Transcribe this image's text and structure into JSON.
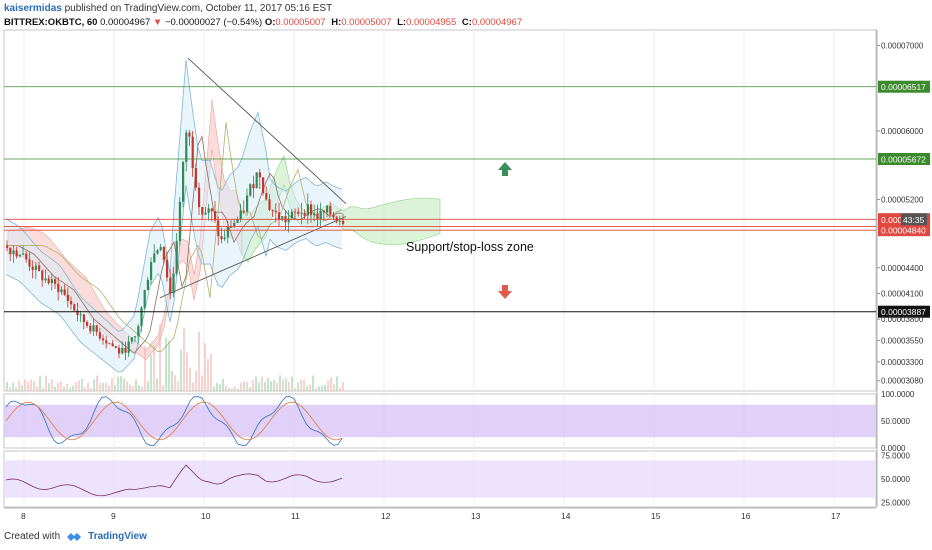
{
  "header": {
    "author": "kaisermidas",
    "published_text": "published on TradingView.com, October 11, 2017 05:16 EST",
    "symbol_line": "BITTREX:OKBTC, 60",
    "last": "0.00004967",
    "change_arrow": "▼",
    "change": "−0.00000027 (−0.54%)",
    "o_label": "O:",
    "o_value": "0.00005007",
    "h_label": "H:",
    "h_value": "0.00005007",
    "l_label": "L:",
    "l_value": "0.00004955",
    "c_label": "C:",
    "c_value": "0.00004967"
  },
  "footer": {
    "created_with": "Created with",
    "brand": "TradingView"
  },
  "colors": {
    "up": "#2e8b57",
    "down": "#c0392b",
    "support_green": "#3c8a2e",
    "red_level": "#e0473e",
    "black_level": "#111111",
    "rsi_band": "#d9c6f7",
    "arrow_up": "#3a8f5a",
    "arrow_down": "#e05a4a"
  },
  "chart_data": {
    "type": "candlestick",
    "title": "",
    "annotation": "Support/stop-loss zone",
    "x_ticks": [
      "8",
      "9",
      "10",
      "11",
      "12",
      "13",
      "14",
      "15",
      "16",
      "17"
    ],
    "y_ticks": [
      "0.00007000",
      "0.00006000",
      "0.00005200",
      "0.00004400",
      "0.00004100",
      "0.00003800",
      "0.00003550",
      "0.00003300",
      "0.00003080"
    ],
    "ylim": [
      2.96e-05,
      7.18e-05
    ],
    "levels": [
      {
        "label": "0.00006517",
        "value": 6.517e-05,
        "color": "green"
      },
      {
        "label": "0.00005672",
        "value": 5.672e-05,
        "color": "green"
      },
      {
        "label": "0.00004967",
        "value": 4.967e-05,
        "color": "red",
        "countdown": "43:35"
      },
      {
        "label": "0.00004882",
        "value": 4.882e-05,
        "color": "red"
      },
      {
        "label": "0.00004840",
        "value": 4.84e-05,
        "color": "red"
      },
      {
        "label": "0.00003887",
        "value": 3.887e-05,
        "color": "black"
      }
    ],
    "countdown": "43:35",
    "current_price_prefix": "0.000",
    "stoch_axis": [
      "100.0000",
      "50.0000",
      "0.0000"
    ],
    "rsi_axis": [
      "75.0000",
      "50.0000",
      "25.0000"
    ]
  }
}
